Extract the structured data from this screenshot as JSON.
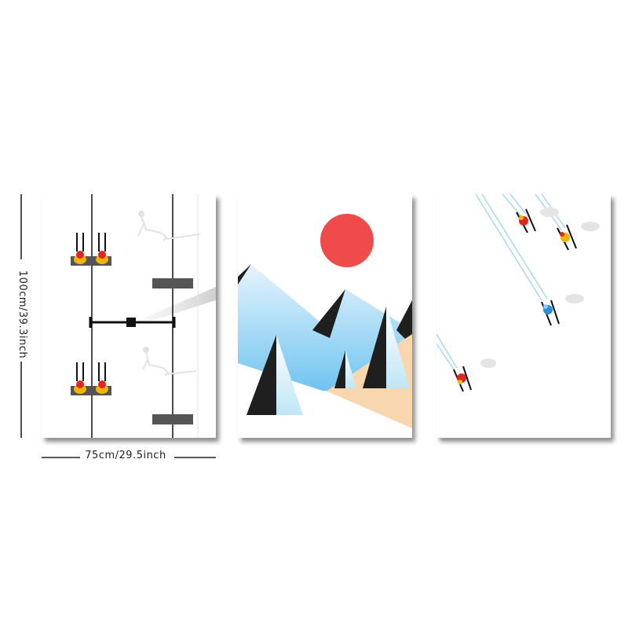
{
  "dimensions": {
    "width_label": "75cm/29.5inch",
    "height_label": "100cm/39.3inch"
  },
  "colors": {
    "sun": "#ef4b4b",
    "sky_blue": "#7fc6ee",
    "sand": "#f8d6ae",
    "tree_dark": "#1f1f1f",
    "chair_gray": "#555555",
    "skier_red": "#e0261e",
    "skier_yellow": "#f5b400",
    "skier_blue": "#2a8fd6"
  },
  "panels": [
    {
      "name": "chairlift-panel"
    },
    {
      "name": "mountain-sun-panel"
    },
    {
      "name": "skiers-panel"
    }
  ]
}
